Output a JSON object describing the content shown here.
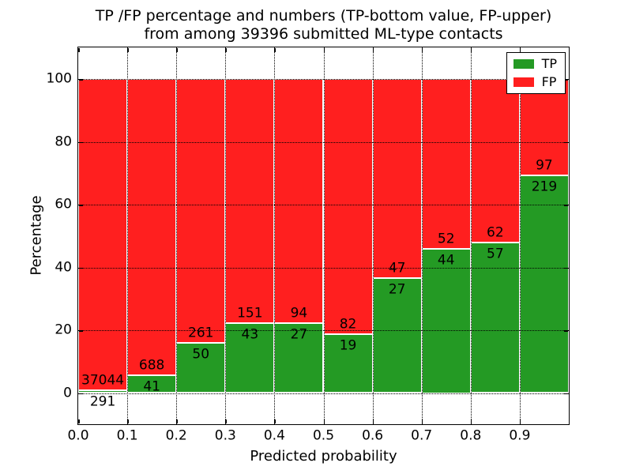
{
  "chart_data": {
    "type": "bar",
    "stacked": true,
    "title": "TP /FP percentage and numbers (TP-bottom value, FP-upper) from among 39396 submitted ML-type contacts",
    "title_line1": "TP /FP percentage and numbers (TP-bottom value, FP-upper)",
    "title_line2": "from among 39396 submitted ML-type contacts",
    "xlabel": "Predicted probability",
    "ylabel": "Percentage",
    "xlim": [
      0.0,
      1.0
    ],
    "ylim": [
      -10,
      110
    ],
    "grid": "dotted",
    "legend_position": "upper-right",
    "x_tick_labels": [
      "0.0",
      "0.1",
      "0.2",
      "0.3",
      "0.4",
      "0.5",
      "0.6",
      "0.7",
      "0.8",
      "0.9"
    ],
    "y_tick_labels": [
      "0",
      "20",
      "40",
      "60",
      "80",
      "100"
    ],
    "y_tick_values": [
      0,
      20,
      40,
      60,
      80,
      100
    ],
    "bin_ranges": [
      "0.0-0.1",
      "0.1-0.2",
      "0.2-0.3",
      "0.3-0.4",
      "0.4-0.5",
      "0.5-0.6",
      "0.6-0.7",
      "0.7-0.8",
      "0.8-0.9",
      "0.9-1.0"
    ],
    "series": [
      {
        "name": "TP",
        "color": "#249A24",
        "counts": [
          291,
          41,
          50,
          43,
          27,
          19,
          27,
          44,
          57,
          219
        ],
        "percent": [
          0.78,
          5.62,
          16.08,
          22.16,
          22.31,
          18.81,
          36.49,
          45.83,
          47.9,
          69.3
        ]
      },
      {
        "name": "FP",
        "color": "#FF1F1F",
        "counts": [
          37044,
          688,
          261,
          151,
          94,
          82,
          47,
          52,
          62,
          97
        ],
        "percent": [
          99.22,
          94.38,
          83.92,
          77.84,
          77.69,
          81.19,
          63.51,
          54.17,
          52.1,
          30.7
        ]
      }
    ]
  }
}
